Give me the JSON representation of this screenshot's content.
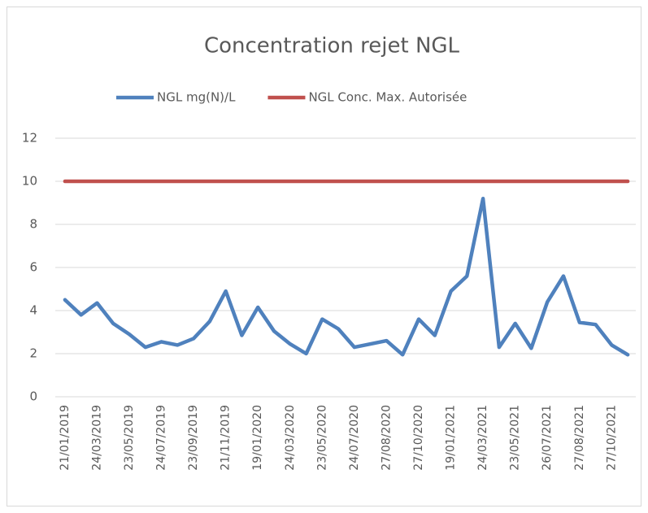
{
  "chart_data": {
    "type": "line",
    "title": "Concentration rejet NGL",
    "categories": [
      "21/01/2019",
      null,
      "24/03/2019",
      null,
      "23/05/2019",
      null,
      "24/07/2019",
      null,
      "23/09/2019",
      null,
      "21/11/2019",
      null,
      "19/01/2020",
      null,
      "24/03/2020",
      null,
      "23/05/2020",
      null,
      "24/07/2020",
      null,
      "27/08/2020",
      null,
      "27/10/2020",
      null,
      "19/01/2021",
      null,
      "24/03/2021",
      null,
      "23/05/2021",
      null,
      "26/07/2021",
      null,
      "27/08/2021",
      null,
      "27/10/2021",
      null
    ],
    "series": [
      {
        "name": "NGL mg(N)/L",
        "color": "#4f81bd",
        "values": [
          4.5,
          3.8,
          4.35,
          3.4,
          2.9,
          2.3,
          2.55,
          2.4,
          2.7,
          3.5,
          4.9,
          2.85,
          4.15,
          3.05,
          2.45,
          2.0,
          3.6,
          3.15,
          2.3,
          2.45,
          2.6,
          1.95,
          3.6,
          2.85,
          4.9,
          5.6,
          9.2,
          2.3,
          3.4,
          2.25,
          4.4,
          5.6,
          3.45,
          3.35,
          2.4,
          1.95
        ]
      },
      {
        "name": "NGL Conc. Max. Autorisée",
        "color": "#c0504d",
        "values": [
          10,
          10,
          10,
          10,
          10,
          10,
          10,
          10,
          10,
          10,
          10,
          10,
          10,
          10,
          10,
          10,
          10,
          10,
          10,
          10,
          10,
          10,
          10,
          10,
          10,
          10,
          10,
          10,
          10,
          10,
          10,
          10,
          10,
          10,
          10,
          10
        ]
      }
    ],
    "ylim": [
      0,
      12
    ],
    "yticks": [
      0,
      2,
      4,
      6,
      8,
      10,
      12
    ],
    "grid": true,
    "legend": "top"
  }
}
